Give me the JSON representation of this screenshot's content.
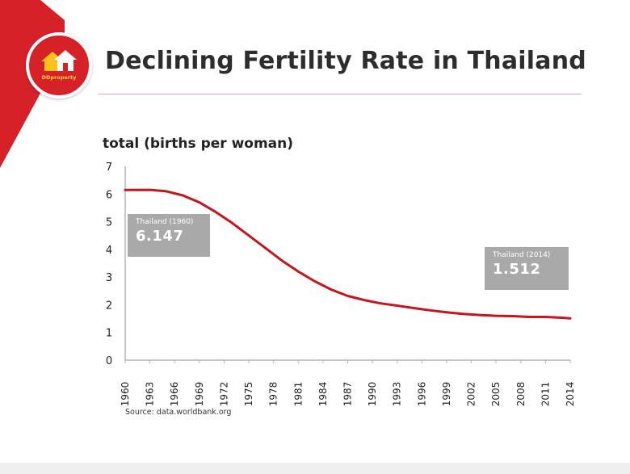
{
  "header": {
    "title": "Declining Fertility Rate in Thailand",
    "logo_text": "DDproperty",
    "accent_color": "#d62128"
  },
  "source_note": "Source: data.worldbank.org",
  "callouts": {
    "start": {
      "label": "Thailand (1960)",
      "value": "6.147"
    },
    "end": {
      "label": "Thailand (2014)",
      "value": "1.512"
    }
  },
  "chart_data": {
    "type": "line",
    "title": "Declining Fertility Rate in Thailand",
    "ylabel": "total (births per woman)",
    "xlabel": "",
    "ylim": [
      0,
      7
    ],
    "xlim": [
      1960,
      2014
    ],
    "y_ticks": [
      0,
      1,
      2,
      3,
      4,
      5,
      6,
      7
    ],
    "x_ticks": [
      "1960",
      "1963",
      "1966",
      "1969",
      "1972",
      "1975",
      "1978",
      "1981",
      "1984",
      "1987",
      "1990",
      "1993",
      "1996",
      "1999",
      "2002",
      "2005",
      "2008",
      "2011",
      "2014"
    ],
    "grid": false,
    "line_color": "#c4161c",
    "series": [
      {
        "x": [
          1960,
          1963,
          1965,
          1967,
          1969,
          1971,
          1973,
          1975,
          1977,
          1979,
          1981,
          1983,
          1985,
          1987,
          1989,
          1991,
          1993,
          1995,
          1997,
          1999,
          2001,
          2003,
          2005,
          2007,
          2009,
          2011,
          2013,
          2014
        ],
        "values": [
          6.147,
          6.15,
          6.1,
          5.95,
          5.7,
          5.35,
          4.95,
          4.5,
          4.05,
          3.6,
          3.2,
          2.85,
          2.55,
          2.32,
          2.17,
          2.05,
          1.97,
          1.88,
          1.8,
          1.73,
          1.67,
          1.63,
          1.6,
          1.59,
          1.56,
          1.56,
          1.53,
          1.512
        ]
      }
    ]
  }
}
